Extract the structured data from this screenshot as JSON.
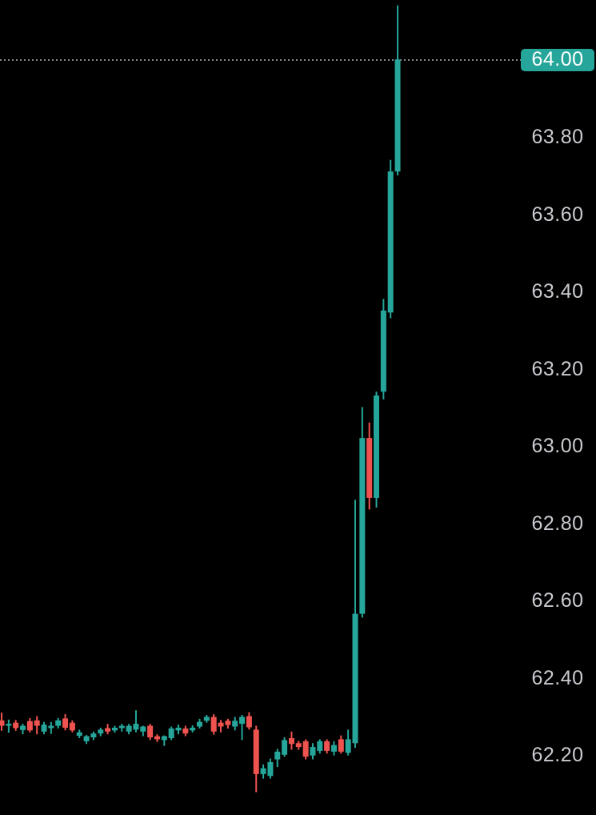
{
  "app": {
    "background_color": "#000000",
    "kind": "candlestick-price-chart"
  },
  "price_axis": {
    "text_color": "#c9cbd0",
    "ticks": [
      "63.80",
      "63.60",
      "63.40",
      "63.20",
      "63.00",
      "62.80",
      "62.60",
      "62.40",
      "62.20"
    ]
  },
  "price_line": {
    "value": 64.0,
    "label": "64.00",
    "style": "dotted",
    "line_color": "#83868e",
    "badge_color": "#26a69a",
    "badge_text_color": "#ffffff"
  },
  "chart_data": {
    "type": "candlestick",
    "title": "",
    "xlabel": "",
    "ylabel": "",
    "grid": false,
    "legend": false,
    "up_color": "#26a69a",
    "down_color": "#ef5350",
    "price_range_visible": [
      62.045,
      64.155
    ],
    "y_ticks": [
      63.8,
      63.6,
      63.4,
      63.2,
      63.0,
      62.8,
      62.6,
      62.4,
      62.2
    ],
    "last_price": 64.0,
    "candles_ohlc": [
      [
        62.29,
        62.31,
        62.263,
        62.276
      ],
      [
        62.276,
        62.292,
        62.258,
        62.281
      ],
      [
        62.284,
        62.291,
        62.263,
        62.27
      ],
      [
        62.265,
        62.281,
        62.254,
        62.276
      ],
      [
        62.288,
        62.296,
        62.259,
        62.264
      ],
      [
        62.29,
        62.301,
        62.254,
        62.276
      ],
      [
        62.261,
        62.286,
        62.254,
        62.279
      ],
      [
        62.27,
        62.286,
        62.255,
        62.276
      ],
      [
        62.276,
        62.296,
        62.269,
        62.29
      ],
      [
        62.295,
        62.306,
        62.264,
        62.271
      ],
      [
        62.284,
        62.29,
        62.259,
        62.264
      ],
      [
        62.25,
        62.266,
        62.244,
        62.259
      ],
      [
        62.236,
        62.252,
        62.229,
        62.249
      ],
      [
        62.246,
        62.261,
        62.239,
        62.256
      ],
      [
        62.256,
        62.271,
        62.249,
        62.266
      ],
      [
        62.27,
        62.281,
        62.254,
        62.261
      ],
      [
        62.264,
        62.276,
        62.258,
        62.271
      ],
      [
        62.27,
        62.281,
        62.261,
        62.276
      ],
      [
        62.261,
        62.281,
        62.254,
        62.276
      ],
      [
        62.266,
        62.316,
        62.259,
        62.281
      ],
      [
        62.261,
        62.276,
        62.249,
        62.274
      ],
      [
        62.276,
        62.281,
        62.239,
        62.246
      ],
      [
        62.249,
        62.254,
        62.234,
        62.241
      ],
      [
        62.239,
        62.251,
        62.224,
        62.249
      ],
      [
        62.244,
        62.274,
        62.239,
        62.269
      ],
      [
        62.264,
        62.279,
        62.254,
        62.271
      ],
      [
        62.269,
        62.276,
        62.249,
        62.256
      ],
      [
        62.264,
        62.277,
        62.259,
        62.271
      ],
      [
        62.274,
        62.294,
        62.269,
        62.286
      ],
      [
        62.289,
        62.304,
        62.284,
        62.299
      ],
      [
        62.299,
        62.306,
        62.253,
        62.261
      ],
      [
        62.284,
        62.291,
        62.259,
        62.274
      ],
      [
        62.289,
        62.294,
        62.269,
        62.278
      ],
      [
        62.274,
        62.299,
        62.264,
        62.289
      ],
      [
        62.281,
        62.304,
        62.239,
        62.299
      ],
      [
        62.301,
        62.311,
        62.266,
        62.272
      ],
      [
        62.266,
        62.276,
        62.104,
        62.151
      ],
      [
        62.151,
        62.176,
        62.139,
        62.166
      ],
      [
        62.146,
        62.191,
        62.139,
        62.182
      ],
      [
        62.189,
        62.216,
        62.169,
        62.209
      ],
      [
        62.201,
        62.246,
        62.196,
        62.239
      ],
      [
        62.244,
        62.261,
        62.214,
        62.229
      ],
      [
        62.231,
        62.237,
        62.214,
        62.221
      ],
      [
        62.236,
        62.241,
        62.189,
        62.196
      ],
      [
        62.199,
        62.231,
        62.189,
        62.221
      ],
      [
        62.211,
        62.241,
        62.204,
        62.236
      ],
      [
        62.236,
        62.241,
        62.204,
        62.211
      ],
      [
        62.209,
        62.236,
        62.199,
        62.226
      ],
      [
        62.241,
        62.251,
        62.204,
        62.209
      ],
      [
        62.206,
        62.266,
        62.199,
        62.241
      ],
      [
        62.231,
        62.861,
        62.219,
        62.566
      ],
      [
        62.566,
        63.101,
        62.556,
        63.021
      ],
      [
        63.021,
        63.061,
        62.836,
        62.866
      ],
      [
        62.866,
        63.141,
        62.841,
        63.131
      ],
      [
        63.141,
        63.381,
        63.121,
        63.351
      ],
      [
        63.346,
        63.741,
        63.331,
        63.711
      ],
      [
        63.711,
        64.141,
        63.701,
        64.001
      ]
    ]
  }
}
